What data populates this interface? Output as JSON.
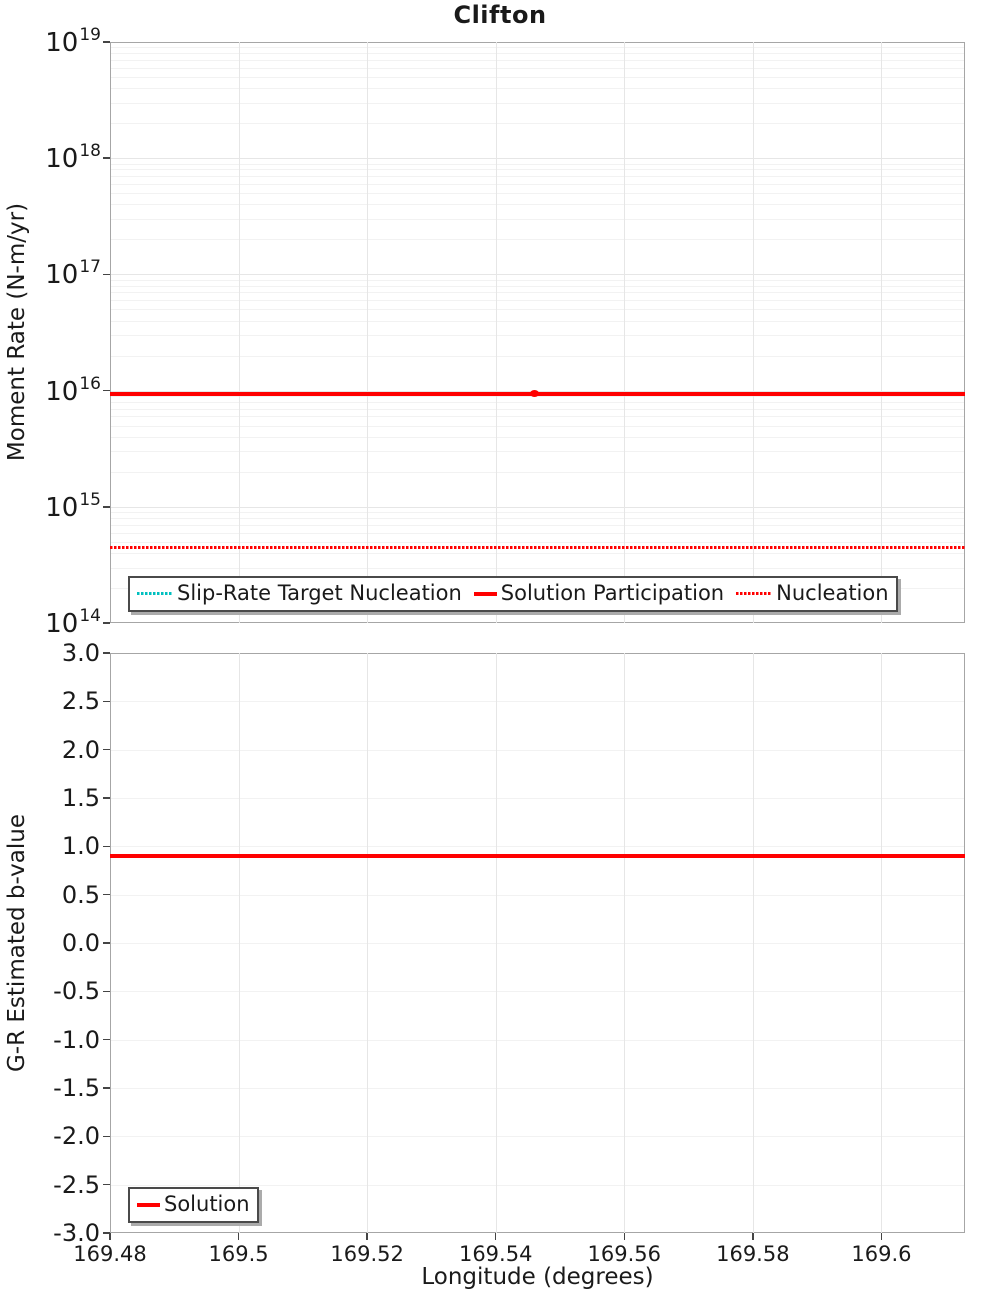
{
  "figure": {
    "title": "Clifton"
  },
  "colors": {
    "solution_red": "#ff0000",
    "target_cyan": "#00bfbf",
    "grid_major": "#e6e6e6",
    "grid_minor": "#f2f2f2",
    "frame_gray": "#a6a6a6"
  },
  "chart_data": [
    {
      "type": "line",
      "title": "Clifton",
      "ylabel": "Moment Rate (N-m/yr)",
      "xlabel": "",
      "yscale": "log",
      "ylim": [
        100000000000000.0,
        1e+19
      ],
      "y_tick_exponents": [
        19,
        18,
        17,
        16,
        15,
        14
      ],
      "xlim": [
        169.48,
        169.613
      ],
      "grid": true,
      "legend_position": "inside-bottom-center",
      "series": [
        {
          "name": "Slip-Rate Target Nucleation",
          "color": "#00bfbf",
          "line_style": "dotted",
          "x": [
            169.48,
            169.613
          ],
          "y": [
            450000000000000.0,
            450000000000000.0
          ],
          "visible_in_plot": false
        },
        {
          "name": "Solution Participation",
          "color": "#ff0000",
          "line_style": "solid",
          "x": [
            169.48,
            169.613
          ],
          "y": [
            9400000000000000.0,
            9400000000000000.0
          ],
          "point_x": 169.546
        },
        {
          "name": "Nucleation",
          "color": "#ff0000",
          "line_style": "dotted",
          "x": [
            169.48,
            169.613
          ],
          "y": [
            450000000000000.0,
            450000000000000.0
          ]
        }
      ]
    },
    {
      "type": "line",
      "title": "",
      "ylabel": "G-R Estimated b-value",
      "xlabel": "Longitude (degrees)",
      "yscale": "linear",
      "ylim": [
        -3.0,
        3.0
      ],
      "y_tick_values": [
        3.0,
        2.5,
        2.0,
        1.5,
        1.0,
        0.5,
        0.0,
        -0.5,
        -1.0,
        -1.5,
        -2.0,
        -2.5,
        -3.0
      ],
      "y_tick_labels": [
        "3.0",
        "2.5",
        "2.0",
        "1.5",
        "1.0",
        "0.5",
        "0.0",
        "-0.5",
        "-1.0",
        "-1.5",
        "-2.0",
        "-2.5",
        "-3.0"
      ],
      "xlim": [
        169.48,
        169.613
      ],
      "x_tick_values": [
        169.48,
        169.5,
        169.52,
        169.54,
        169.56,
        169.58,
        169.6
      ],
      "x_tick_labels": [
        "169.48",
        "169.5",
        "169.52",
        "169.54",
        "169.56",
        "169.58",
        "169.6"
      ],
      "grid": true,
      "legend_position": "inside-bottom-left",
      "series": [
        {
          "name": "Solution",
          "color": "#ff0000",
          "line_style": "solid",
          "x": [
            169.48,
            169.613
          ],
          "y": [
            0.9,
            0.9
          ]
        }
      ]
    }
  ]
}
